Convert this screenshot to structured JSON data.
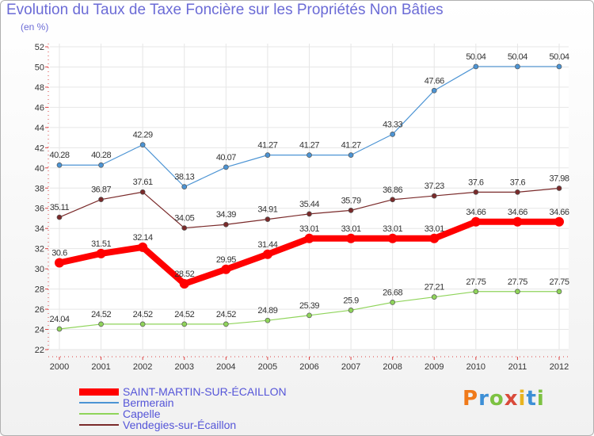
{
  "header": {
    "title": "Evolution du Taux de Taxe Foncière sur les Propriétés Non Bâties",
    "unit": "(en %)"
  },
  "logo": {
    "text": "Proxiti",
    "colors": [
      "#f07a1a",
      "#3d8fd6",
      "#7dc242",
      "#d94a3a",
      "#e8b420",
      "#3d8fd6",
      "#7dc242"
    ]
  },
  "chart_data": {
    "type": "line",
    "title": "Evolution du Taux de Taxe Foncière sur les Propriétés Non Bâties",
    "ylabel": "(en %)",
    "xlabel": "",
    "x": [
      "2000",
      "2001",
      "2002",
      "2003",
      "2004",
      "2005",
      "2006",
      "2007",
      "2008",
      "2009",
      "2010",
      "2011",
      "2012"
    ],
    "ylim": [
      22,
      52
    ],
    "yticks": [
      22,
      24,
      26,
      28,
      30,
      32,
      34,
      36,
      38,
      40,
      42,
      44,
      46,
      48,
      50,
      52
    ],
    "grid": true,
    "legend_position": "bottom-left",
    "series": [
      {
        "name": "SAINT-MARTIN-SUR-ÉCAILLON",
        "color": "#ff0000",
        "highlight": true,
        "values": [
          30.6,
          31.51,
          32.14,
          28.52,
          29.95,
          31.44,
          33.01,
          33.01,
          33.01,
          33.01,
          34.66,
          34.66,
          34.66
        ],
        "labels": [
          "30.6",
          "31.51",
          "32.14",
          "28.52",
          "29.95",
          "31.44",
          "33.01",
          "33.01",
          "33.01",
          "33.01",
          "34.66",
          "34.66",
          "34.66"
        ]
      },
      {
        "name": "Bermerain",
        "color": "#4c94d4",
        "highlight": false,
        "values": [
          40.28,
          40.28,
          42.29,
          38.13,
          40.07,
          41.27,
          41.27,
          41.27,
          43.33,
          47.66,
          50.04,
          50.04,
          50.04
        ],
        "labels": [
          "40.28",
          "40.28",
          "42.29",
          "38.13",
          "40.07",
          "41.27",
          "41.27",
          "41.27",
          "43.33",
          "47.66",
          "50.04",
          "50.04",
          "50.04"
        ]
      },
      {
        "name": "Capelle",
        "color": "#8fd45a",
        "highlight": false,
        "values": [
          24.04,
          24.52,
          24.52,
          24.52,
          24.52,
          24.89,
          25.39,
          25.9,
          26.68,
          27.21,
          27.75,
          27.75,
          27.75
        ],
        "labels": [
          "24.04",
          "24.52",
          "24.52",
          "24.52",
          "24.52",
          "24.89",
          "25.39",
          "25.9",
          "26.68",
          "27.21",
          "27.75",
          "27.75",
          "27.75"
        ]
      },
      {
        "name": "Vendegies-sur-Écaillon",
        "color": "#7a2a2a",
        "highlight": false,
        "values": [
          35.11,
          36.87,
          37.61,
          34.05,
          34.39,
          34.91,
          35.44,
          35.79,
          36.86,
          37.23,
          37.6,
          37.6,
          37.98
        ],
        "labels": [
          "35.11",
          "36.87",
          "37.61",
          "34.05",
          "34.39",
          "34.91",
          "35.44",
          "35.79",
          "36.86",
          "37.23",
          "37.6",
          "37.6",
          "37.98"
        ]
      }
    ]
  }
}
